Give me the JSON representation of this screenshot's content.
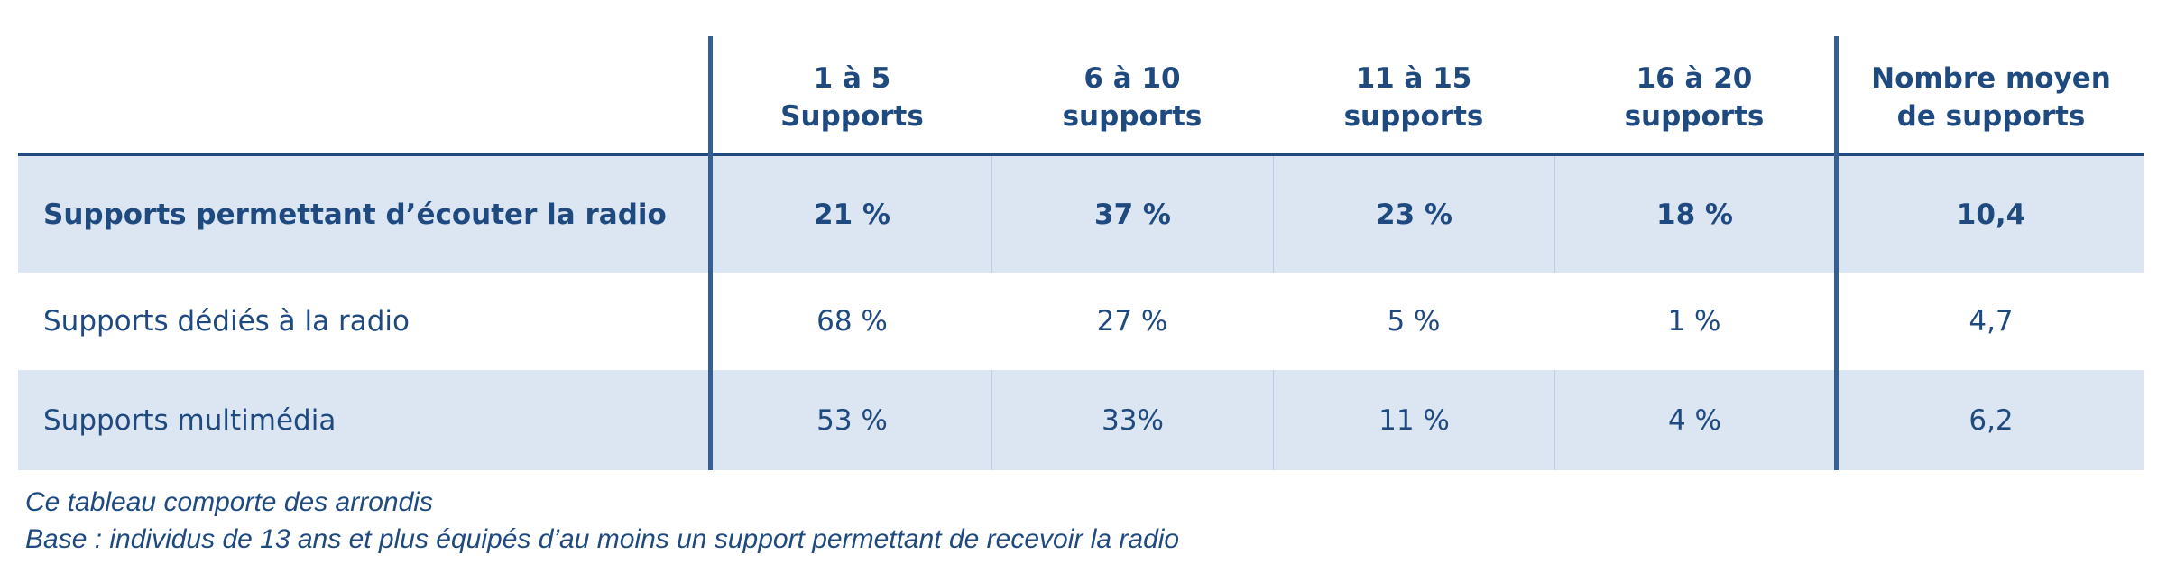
{
  "table": {
    "headers": [
      {
        "line1": "",
        "line2": ""
      },
      {
        "line1": "1 à 5",
        "line2": "Supports"
      },
      {
        "line1": "6 à 10",
        "line2": "supports"
      },
      {
        "line1": "11 à 15",
        "line2": "supports"
      },
      {
        "line1": "16 à 20",
        "line2": "supports"
      },
      {
        "line1": "Nombre moyen",
        "line2": "de supports"
      }
    ],
    "rows": [
      {
        "label": "Supports permettant d’écouter la radio",
        "values": [
          "21 %",
          "37 %",
          "23 %",
          "18 %",
          "10,4"
        ],
        "bold": true
      },
      {
        "label": "Supports dédiés à la radio",
        "values": [
          "68 %",
          "27 %",
          "5 %",
          "1 %",
          "4,7"
        ],
        "bold": false
      },
      {
        "label": "Supports multimédia",
        "values": [
          "53 %",
          "33%",
          "11 %",
          "4 %",
          "6,2"
        ],
        "bold": false
      }
    ]
  },
  "footnotes": [
    "Ce tableau comporte des arrondis",
    "Base : individus de 13 ans et plus équipés d’au moins un support permettant de recevoir la radio"
  ],
  "colors": {
    "text": "#1f4a80",
    "header_rule": "#234a7e",
    "divider": "#345f94",
    "row_fill": "#dce6f2",
    "cell_separator": "#b8cde6"
  }
}
